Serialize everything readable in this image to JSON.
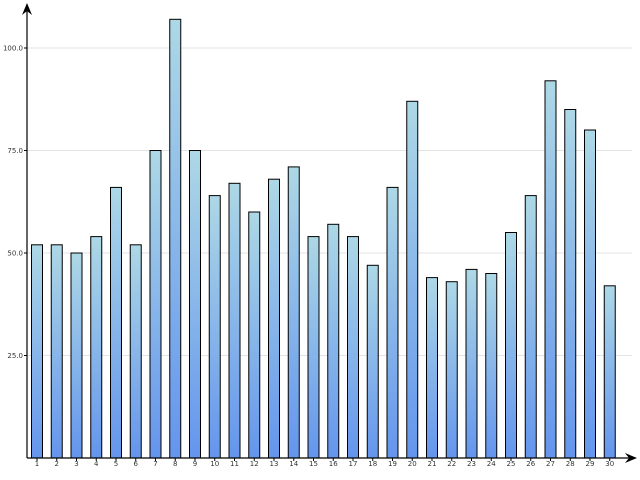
{
  "chart_data": {
    "type": "bar",
    "categories": [
      "1",
      "2",
      "3",
      "4",
      "5",
      "6",
      "7",
      "8",
      "9",
      "10",
      "11",
      "12",
      "13",
      "14",
      "15",
      "16",
      "17",
      "18",
      "19",
      "20",
      "21",
      "22",
      "23",
      "24",
      "25",
      "26",
      "27",
      "28",
      "29",
      "30"
    ],
    "values": [
      52,
      52,
      50,
      54,
      66,
      52,
      75,
      107,
      75,
      64,
      67,
      60,
      68,
      71,
      54,
      57,
      54,
      47,
      66,
      87,
      44,
      43,
      46,
      45,
      55,
      64,
      92,
      85,
      80,
      42
    ],
    "yticks": [
      25,
      50,
      75,
      100
    ],
    "ytick_labels": [
      "25.0",
      "50.0",
      "75.0",
      "100.0"
    ],
    "ylim": [
      0,
      110
    ],
    "grid": true,
    "legend": "none",
    "bar_gradient": {
      "top": "#add8e6",
      "bottom": "#6495ed"
    },
    "bar_stroke": "#000000",
    "grid_color": "#e3e3e3"
  }
}
